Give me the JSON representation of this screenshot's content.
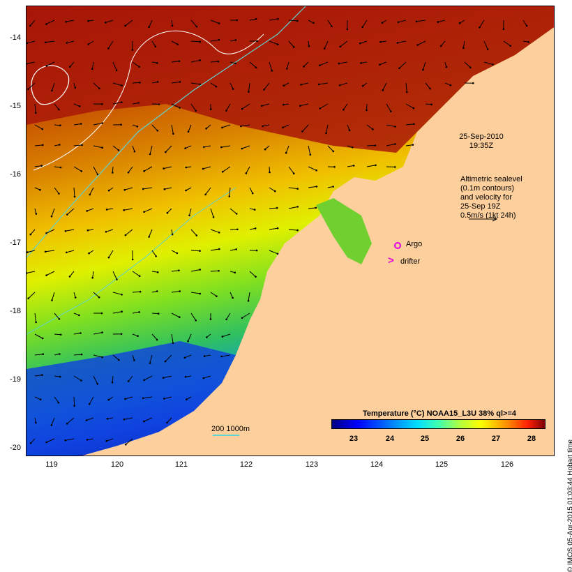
{
  "map": {
    "y_axis_labels": [
      "-14",
      "-15",
      "-16",
      "-17",
      "-18",
      "-19",
      "-20"
    ],
    "x_axis_labels": [
      "119",
      "120",
      "121",
      "122",
      "123",
      "124",
      "125",
      "126"
    ],
    "timestamp_line1": "25-Sep-2010",
    "timestamp_line2": "19:35Z",
    "legend_text_lines": [
      "Altimetric sealevel",
      "(0.1m contours)",
      "and velocity for",
      "25-Sep 19Z",
      "0.5m/s (1kt 24h)"
    ],
    "argo_label": "Argo",
    "drifter_label": "drifter",
    "drifter_symbol": ">",
    "scale_label": "200  1000m",
    "colorbar_title": "Temperature (°C) NOAA15_L3U 38% ql>=4",
    "colorbar_ticks": [
      "23",
      "24",
      "25",
      "26",
      "27",
      "28"
    ],
    "credit": "© IMOS 05-Apr-2015 01:03:44 Hobart time",
    "colors": {
      "land": "#fccf9c",
      "argo": "#e000e0",
      "isobath": "#5fd4d0"
    }
  }
}
